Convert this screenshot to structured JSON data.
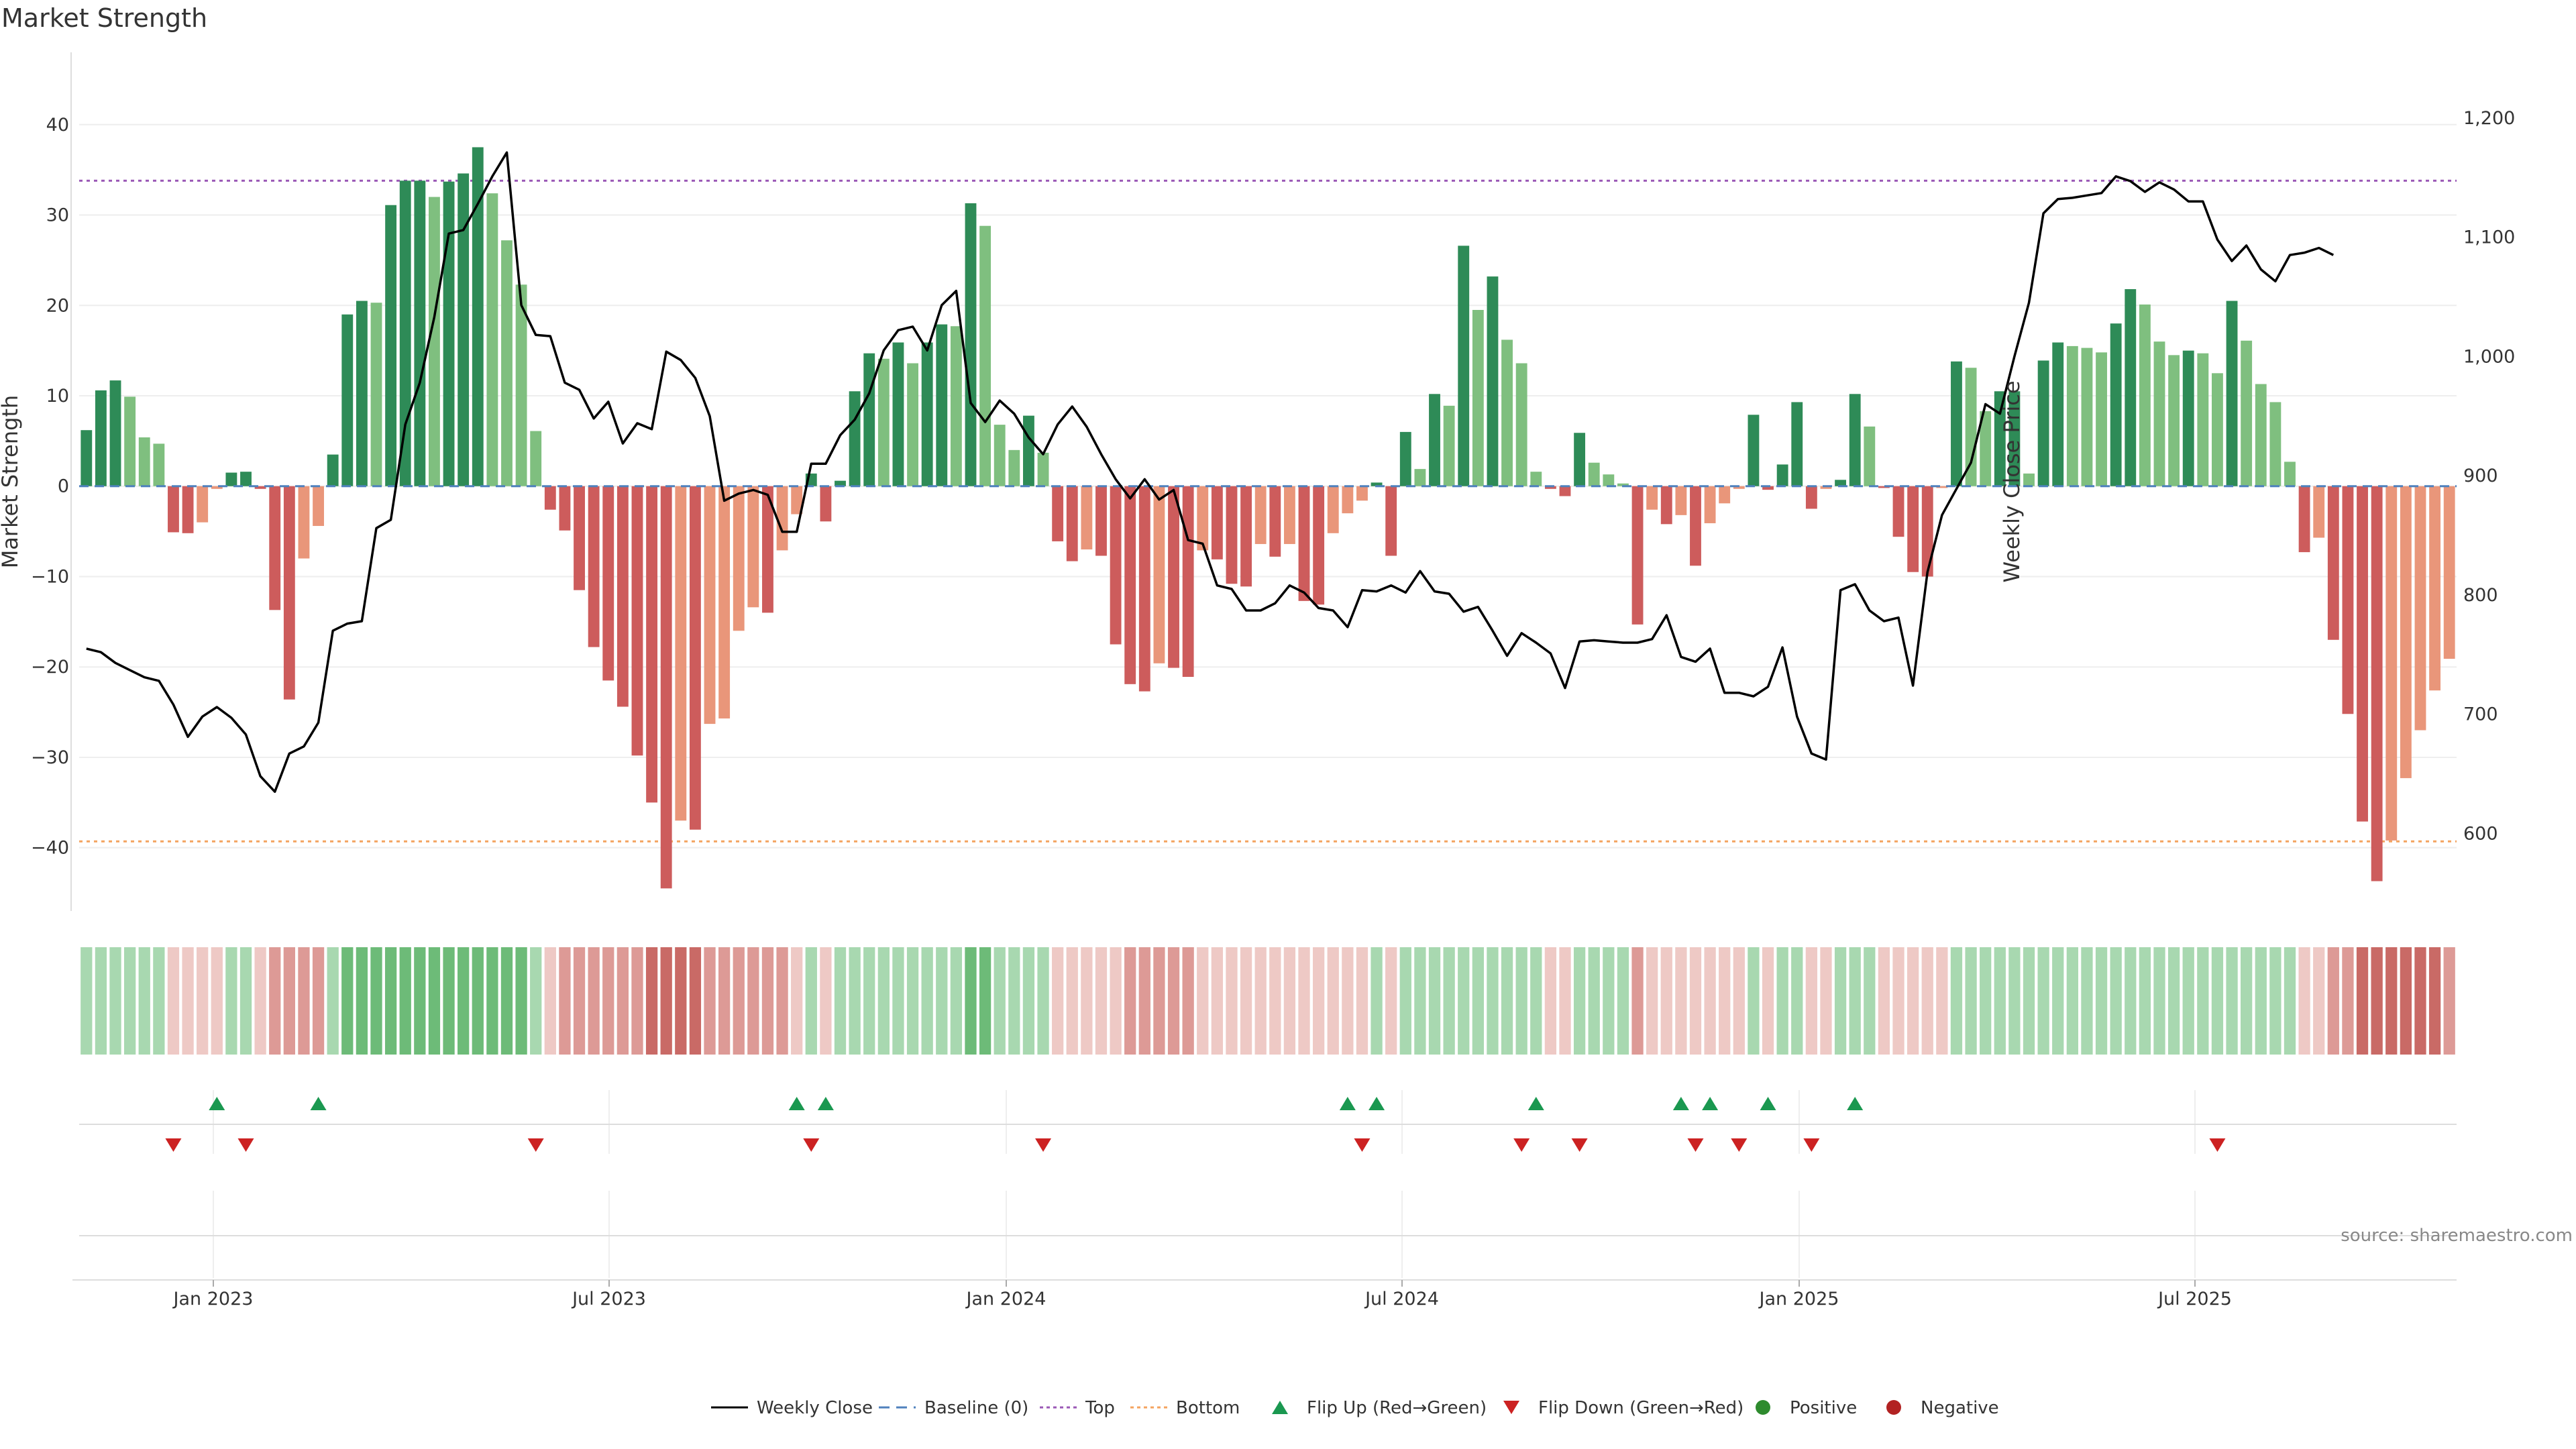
{
  "title": "Market Strength",
  "source_text": "source: sharemaestro.com",
  "colors": {
    "pos_strong": "#2e8b57",
    "pos_light": "#7fbf7f",
    "neg_strong": "#cd5c5c",
    "neg_light": "#e9967a",
    "line": "#000000",
    "top": "#9b59b6",
    "bottom": "#f4a460",
    "baseline": "#4f81bd",
    "flip_up": "#1a9850",
    "flip_down": "#cc2222"
  },
  "chart_data": {
    "type": "bar",
    "left_axis": {
      "label": "Market Strength",
      "ticks": [
        40,
        30,
        20,
        10,
        0,
        -10,
        -20,
        -30,
        -40
      ],
      "range": [
        -47,
        48
      ]
    },
    "right_axis": {
      "label": "Weekly Close Price",
      "ticks": [
        1200,
        1100,
        1000,
        900,
        800,
        700,
        600
      ],
      "range": [
        535,
        1255
      ]
    },
    "x_labels": [
      "Jan 2023",
      "Jul 2023",
      "Jan 2024",
      "Jul 2024",
      "Jan 2025",
      "Jul 2025"
    ],
    "thresholds": {
      "top": 33.8,
      "bottom": -39.3
    },
    "strength": [
      6.2,
      10.6,
      11.7,
      9.9,
      5.4,
      4.7,
      -5.1,
      -5.2,
      -4.0,
      -0.3,
      1.5,
      1.6,
      -0.3,
      -13.7,
      -23.6,
      -8.0,
      -4.4,
      3.5,
      19.0,
      20.5,
      20.3,
      31.1,
      33.8,
      33.8,
      32.0,
      33.7,
      34.6,
      37.5,
      32.4,
      27.2,
      22.3,
      6.1,
      -2.6,
      -4.9,
      -11.5,
      -17.8,
      -21.5,
      -24.4,
      -29.8,
      -35.0,
      -44.5,
      -37.0,
      -38.0,
      -26.3,
      -25.7,
      -16.0,
      -13.4,
      -14.0,
      -7.1,
      -3.1,
      1.4,
      -3.9,
      0.6,
      10.5,
      14.7,
      14.1,
      15.9,
      13.6,
      15.9,
      17.9,
      17.7,
      31.3,
      28.8,
      6.8,
      4.0,
      7.8,
      3.7,
      -6.1,
      -8.3,
      -7.0,
      -7.7,
      -17.5,
      -21.9,
      -22.7,
      -19.6,
      -20.1,
      -21.1,
      -7.1,
      -8.1,
      -10.8,
      -11.1,
      -6.4,
      -7.8,
      -6.4,
      -12.7,
      -13.1,
      -5.2,
      -3.0,
      -1.6,
      0.4,
      -7.7,
      6.0,
      1.9,
      10.2,
      8.9,
      26.6,
      19.5,
      23.2,
      16.2,
      13.6,
      1.6,
      -0.3,
      -1.1,
      5.9,
      2.6,
      1.3,
      0.3,
      -15.3,
      -2.6,
      -4.2,
      -3.2,
      -8.8,
      -4.1,
      -1.9,
      -0.3,
      7.9,
      -0.4,
      2.4,
      9.3,
      -2.5,
      -0.3,
      0.7,
      10.2,
      6.6,
      -0.2,
      -5.6,
      -9.5,
      -10.0,
      -0.2,
      13.8,
      13.1,
      8.3,
      10.5,
      10.5,
      1.4,
      13.9,
      15.9,
      15.5,
      15.3,
      14.8,
      18.0,
      21.8,
      20.1,
      16.0,
      14.5,
      15.0,
      14.7,
      12.5,
      20.5,
      16.1,
      11.3,
      9.3,
      2.7,
      -7.3,
      -5.7,
      -17.0,
      -25.2,
      -37.1,
      -43.7,
      -39.2,
      -32.3,
      -27.0,
      -22.6,
      -19.1
    ],
    "weekly_close": [
      755,
      752,
      743,
      737,
      731,
      728,
      708,
      681,
      698,
      706,
      697,
      683,
      648,
      635,
      667,
      673,
      693,
      770,
      776,
      778,
      856,
      863,
      943,
      978,
      1033,
      1103,
      1106,
      1128,
      1151,
      1171,
      1043,
      1018,
      1017,
      978,
      972,
      948,
      962,
      927,
      944,
      939,
      1004,
      997,
      982,
      950,
      879,
      885,
      888,
      884,
      853,
      853,
      910,
      910,
      934,
      947,
      969,
      1005,
      1022,
      1025,
      1005,
      1043,
      1055,
      961,
      945,
      963,
      952,
      932,
      918,
      943,
      958,
      941,
      918,
      897,
      881,
      897,
      880,
      888,
      846,
      843,
      808,
      805,
      787,
      787,
      793,
      808,
      802,
      789,
      787,
      773,
      804,
      803,
      808,
      802,
      820,
      803,
      801,
      786,
      790,
      770,
      749,
      768,
      760,
      751,
      722,
      761,
      762,
      761,
      760,
      760,
      763,
      783,
      748,
      744,
      755,
      718,
      718,
      715,
      723,
      756,
      698,
      667,
      662,
      804,
      809,
      787,
      778,
      781,
      724,
      819,
      867,
      889,
      911,
      960,
      952,
      1000,
      1045,
      1120,
      1132,
      1133,
      1135,
      1137,
      1151,
      1147,
      1138,
      1146,
      1140,
      1130,
      1130,
      1098,
      1080,
      1093,
      1073,
      1063,
      1085,
      1087,
      1091,
      1085
    ],
    "strip_levels": [
      1,
      1,
      1,
      1,
      1,
      1,
      -1,
      -1,
      -1,
      -1,
      1,
      1,
      -1,
      -2,
      -2,
      -2,
      -2,
      1,
      2,
      2,
      2,
      2,
      2,
      2,
      2,
      2,
      2,
      2,
      2,
      2,
      2,
      1,
      -1,
      -2,
      -2,
      -2,
      -2,
      -2,
      -2,
      -3,
      -3,
      -3,
      -3,
      -2,
      -2,
      -2,
      -2,
      -2,
      -2,
      -1,
      1,
      -1,
      1,
      1,
      1,
      1,
      1,
      1,
      1,
      1,
      1,
      2,
      2,
      1,
      1,
      1,
      1,
      -1,
      -1,
      -1,
      -1,
      -1,
      -2,
      -2,
      -2,
      -2,
      -2,
      -1,
      -1,
      -1,
      -1,
      -1,
      -1,
      -1,
      -1,
      -1,
      -1,
      -1,
      -1,
      1,
      -1,
      1,
      1,
      1,
      1,
      1,
      1,
      1,
      1,
      1,
      1,
      -1,
      -1,
      1,
      1,
      1,
      1,
      -2,
      -1,
      -1,
      -1,
      -1,
      -1,
      -1,
      -1,
      1,
      -1,
      1,
      1,
      -1,
      -1,
      1,
      1,
      1,
      -1,
      -1,
      -1,
      -1,
      -1,
      1,
      1,
      1,
      1,
      1,
      1,
      1,
      1,
      1,
      1,
      1,
      1,
      1,
      1,
      1,
      1,
      1,
      1,
      1,
      1,
      1,
      1,
      1,
      1,
      -1,
      -1,
      -2,
      -2,
      -3,
      -3,
      -3,
      -3,
      -3,
      -3,
      -2
    ],
    "flip_up_weeks": [
      9,
      16,
      49,
      51,
      87,
      89,
      100,
      110,
      112,
      116,
      122
    ],
    "flip_down_weeks": [
      6,
      11,
      31,
      50,
      66,
      88,
      99,
      103,
      111,
      114,
      119,
      147
    ]
  },
  "legend": [
    {
      "kind": "line-solid",
      "label": "Weekly Close"
    },
    {
      "kind": "line-dash",
      "label": "Baseline (0)"
    },
    {
      "kind": "line-dot-purple",
      "label": "Top"
    },
    {
      "kind": "line-dot-orange",
      "label": "Bottom"
    },
    {
      "kind": "tri-up",
      "label": "Flip Up (Red→Green)"
    },
    {
      "kind": "tri-down",
      "label": "Flip Down (Green→Red)"
    },
    {
      "kind": "dot-green",
      "label": "Positive"
    },
    {
      "kind": "dot-red",
      "label": "Negative"
    }
  ]
}
